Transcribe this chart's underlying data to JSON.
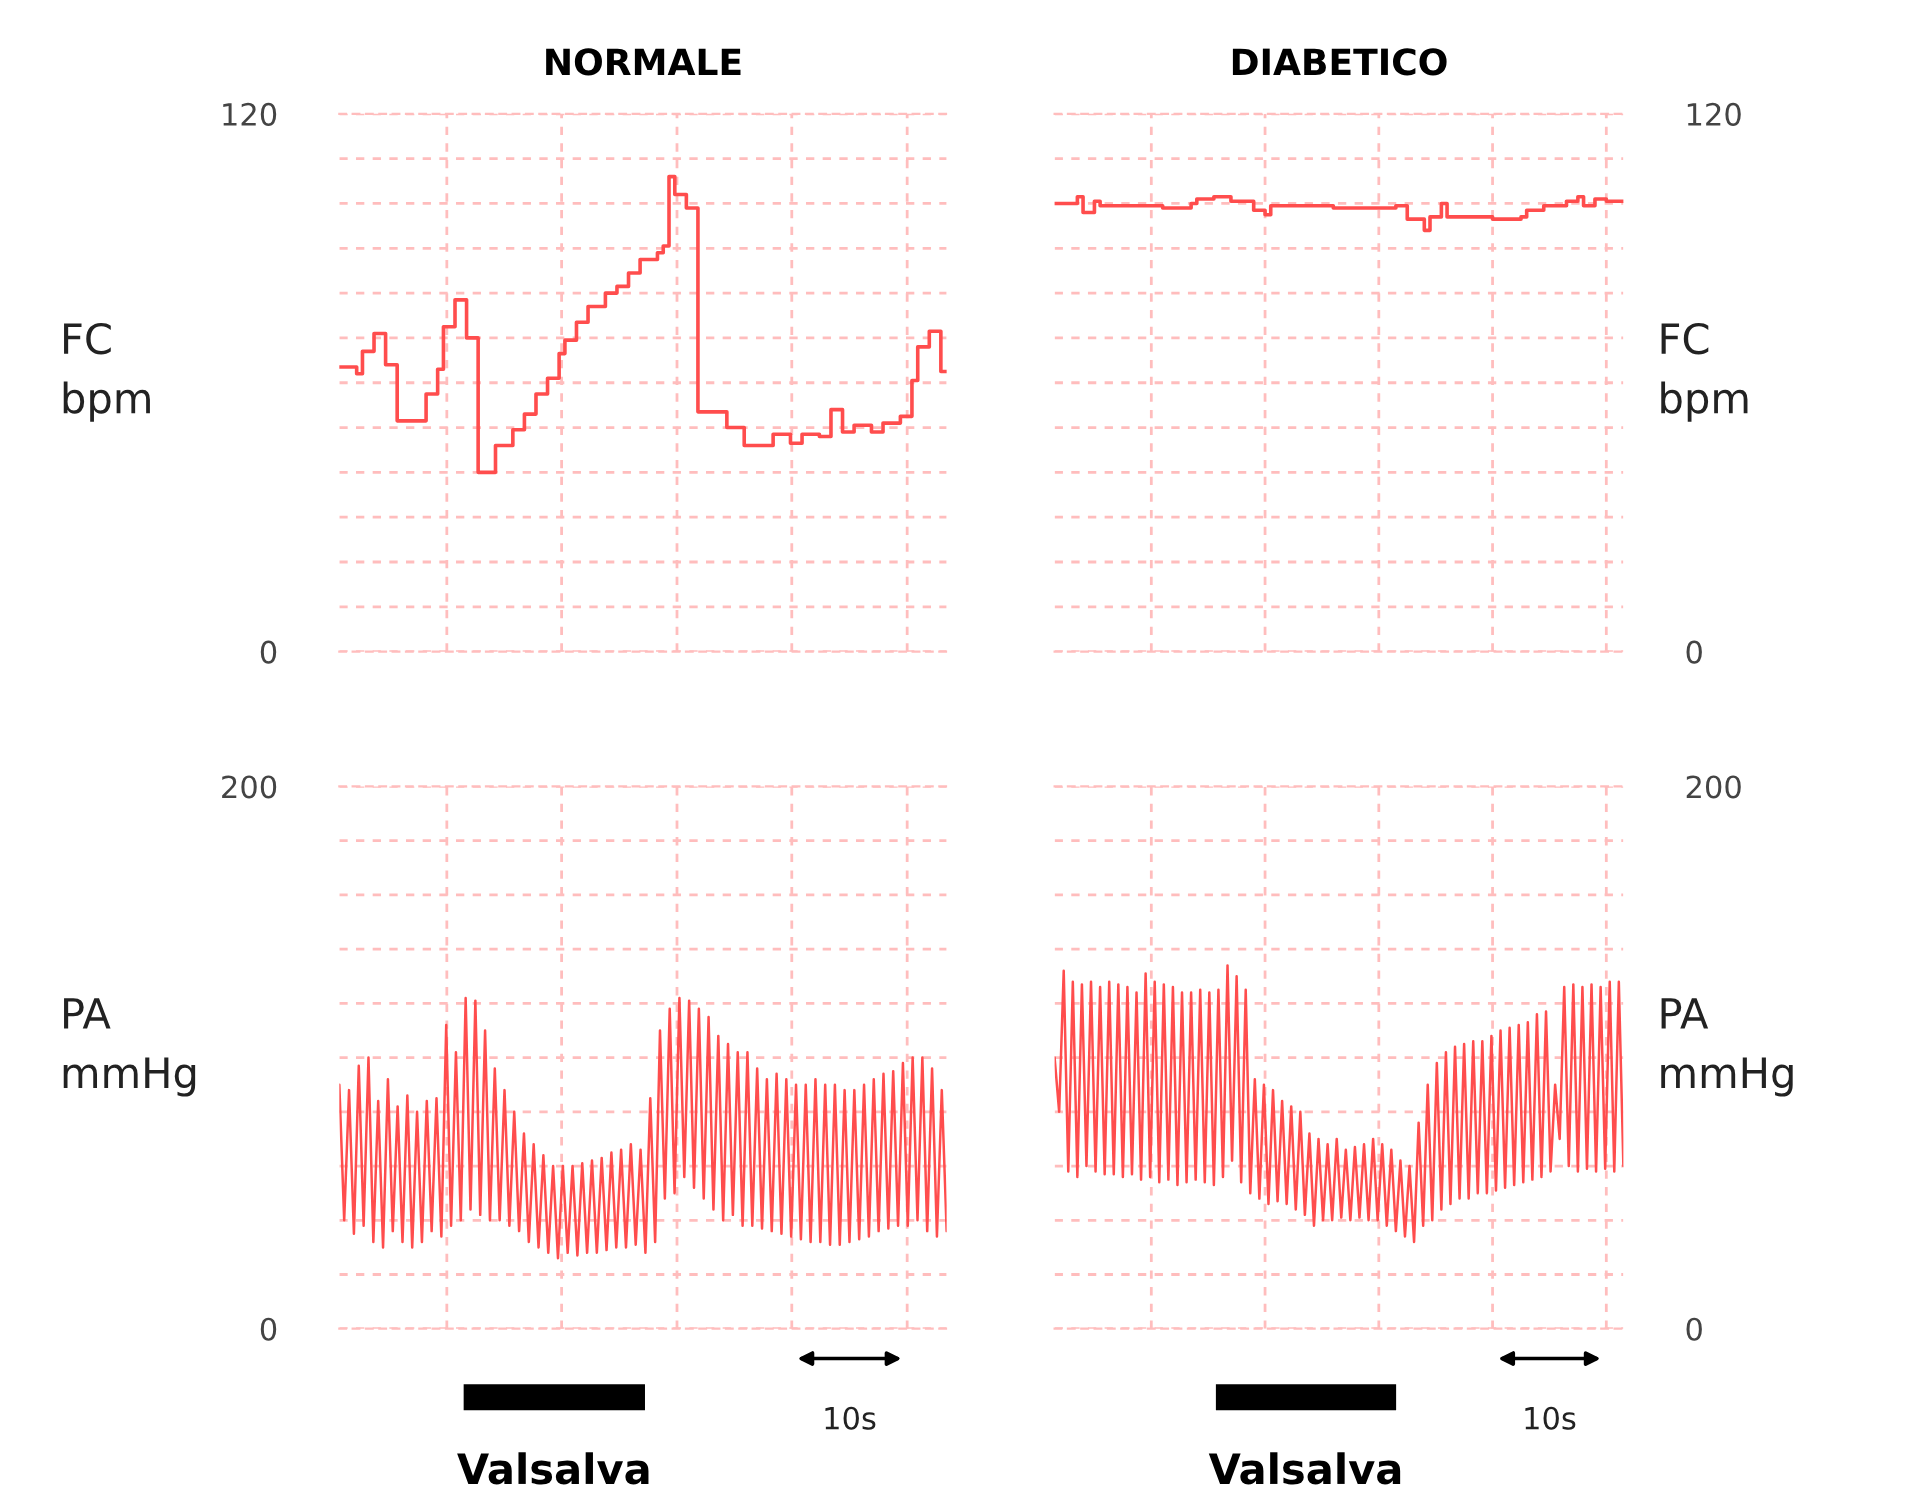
{
  "chart_data": [
    {
      "type": "step",
      "title": "NORMALE",
      "ylabel": "FC\nbpm",
      "ylim": [
        0,
        120
      ],
      "yticks": [
        0,
        {
          "value": 10,
          "label": null
        },
        {
          "value": 20,
          "label": null
        },
        {
          "value": 30,
          "label": null
        },
        {
          "value": 40,
          "label": null
        },
        {
          "value": 50,
          "label": null
        },
        {
          "value": 60,
          "label": null
        },
        {
          "value": 70,
          "label": null
        },
        {
          "value": 80,
          "label": null
        },
        {
          "value": 90,
          "label": null
        },
        {
          "value": 100,
          "label": null
        },
        {
          "value": 110,
          "label": null
        },
        120
      ],
      "grid": true,
      "tick_labels": "y",
      "line_style": "solid",
      "categories": [
        null,
        null,
        null,
        null,
        null,
        null,
        null,
        null,
        null,
        null,
        null,
        null,
        null,
        null,
        null,
        null,
        null,
        null,
        null,
        null,
        null,
        null,
        null,
        null,
        null,
        null,
        null,
        null,
        null,
        null,
        null,
        null,
        null,
        null,
        null,
        null,
        null,
        null,
        null,
        null,
        null,
        null,
        null,
        null,
        null,
        null,
        null,
        null,
        null,
        null,
        null,
        null,
        null,
        null,
        null,
        null,
        null,
        null,
        null,
        null,
        null,
        null,
        null,
        null,
        null,
        null,
        null,
        null,
        null,
        null,
        null,
        null,
        null,
        null,
        null,
        null,
        null,
        null,
        null,
        null,
        null,
        null,
        null,
        null,
        null,
        null,
        null,
        null,
        null,
        null,
        null,
        null,
        null,
        null,
        null,
        null,
        null,
        null,
        null,
        null,
        null,
        null,
        null,
        null,
        null,
        null
      ],
      "series": [
        {
          "color": "#ff4d4d",
          "values": [
            63.5,
            63.5,
            63.5,
            62,
            67,
            67,
            71,
            71,
            64,
            64,
            51.5,
            51.5,
            51.5,
            51.5,
            51.5,
            57.5,
            57.5,
            63,
            72.5,
            72.5,
            78.5,
            78.5,
            70,
            70,
            40,
            40,
            40,
            46,
            46,
            46,
            49.5,
            49.5,
            53,
            53,
            57.5,
            57.5,
            61,
            61,
            66.5,
            69.5,
            69.5,
            73.5,
            73.5,
            77,
            77,
            77,
            80,
            80,
            81.5,
            81.5,
            84.5,
            84.5,
            87.5,
            87.5,
            87.5,
            89,
            90.5,
            106,
            102,
            102,
            99,
            99,
            53.5,
            53.5,
            53.5,
            53.5,
            53.5,
            50,
            50,
            50,
            46,
            46,
            46,
            46,
            46,
            48.5,
            48.5,
            48.5,
            46.5,
            46.5,
            48.5,
            48.5,
            48.5,
            48,
            48,
            54,
            54,
            49,
            49,
            50.5,
            50.5,
            50.5,
            49,
            49,
            51,
            51,
            51,
            52.5,
            52.5,
            60.5,
            68,
            68,
            71.5,
            71.5,
            62.5,
            62.5
          ]
        }
      ]
    },
    {
      "type": "step",
      "title": "DIABETICO",
      "ylabel": "FC\nbpm",
      "ylim": [
        0,
        120
      ],
      "yticks": [
        0,
        {
          "value": 10,
          "label": null
        },
        {
          "value": 20,
          "label": null
        },
        {
          "value": 30,
          "label": null
        },
        {
          "value": 40,
          "label": null
        },
        {
          "value": 50,
          "label": null
        },
        {
          "value": 60,
          "label": null
        },
        {
          "value": 70,
          "label": null
        },
        {
          "value": 80,
          "label": null
        },
        {
          "value": 90,
          "label": null
        },
        {
          "value": 100,
          "label": null
        },
        {
          "value": 110,
          "label": null
        },
        120
      ],
      "grid": true,
      "tick_labels": "y",
      "line_style": "solid",
      "categories": [
        null,
        null,
        null,
        null,
        null,
        null,
        null,
        null,
        null,
        null,
        null,
        null,
        null,
        null,
        null,
        null,
        null,
        null,
        null,
        null,
        null,
        null,
        null,
        null,
        null,
        null,
        null,
        null,
        null,
        null,
        null,
        null,
        null,
        null,
        null,
        null,
        null,
        null,
        null,
        null,
        null,
        null,
        null,
        null,
        null,
        null,
        null,
        null,
        null,
        null,
        null,
        null,
        null,
        null,
        null,
        null,
        null,
        null,
        null,
        null,
        null,
        null,
        null,
        null,
        null,
        null,
        null,
        null,
        null,
        null,
        null,
        null,
        null,
        null,
        null,
        null,
        null,
        null,
        null,
        null,
        null,
        null,
        null,
        null,
        null,
        null,
        null,
        null,
        null,
        null,
        null,
        null,
        null,
        null,
        null,
        null,
        null,
        null,
        null,
        null,
        null
      ],
      "series": [
        {
          "color": "#ff4d4d",
          "values": [
            100,
            100,
            100,
            100,
            101.5,
            98,
            98,
            100.5,
            99.5,
            99.5,
            99.5,
            99.5,
            99.5,
            99.5,
            99.5,
            99.5,
            99.5,
            99.5,
            99.5,
            99,
            99,
            99,
            99,
            99,
            100,
            101,
            101,
            101,
            101.5,
            101.5,
            101.5,
            100.5,
            100.5,
            100.5,
            100.5,
            98.5,
            98.5,
            97.5,
            99.5,
            99.5,
            99.5,
            99.5,
            99.5,
            99.5,
            99.5,
            99.5,
            99.5,
            99.5,
            99.5,
            99,
            99,
            99,
            99,
            99,
            99,
            99,
            99,
            99,
            99,
            99,
            99.5,
            99.5,
            96.5,
            96.5,
            96.5,
            94,
            97,
            97,
            100,
            97,
            97,
            97,
            97,
            97,
            97,
            97,
            97,
            96.5,
            96.5,
            96.5,
            96.5,
            96.5,
            97,
            98.5,
            98.5,
            98.5,
            99.5,
            99.5,
            99.5,
            99.5,
            100.5,
            100.5,
            101.5,
            99.5,
            99.5,
            101,
            101,
            100.5,
            100.5,
            100.5,
            100.5
          ]
        }
      ]
    },
    {
      "type": "line",
      "ylabel": "PA\nmmHg",
      "ylim": [
        0,
        200
      ],
      "yticks": [
        0,
        {
          "value": 20,
          "label": null
        },
        {
          "value": 40,
          "label": null
        },
        {
          "value": 60,
          "label": null
        },
        {
          "value": 80,
          "label": null
        },
        {
          "value": 100,
          "label": null
        },
        {
          "value": 120,
          "label": null
        },
        {
          "value": 140,
          "label": null
        },
        {
          "value": 160,
          "label": null
        },
        {
          "value": 180,
          "label": null
        },
        200
      ],
      "grid": true,
      "tick_labels": "y",
      "line_style": "solid",
      "annotations": [
        "Valsalva",
        "10s"
      ],
      "categories": [
        null,
        null,
        null,
        null,
        null,
        null,
        null,
        null,
        null,
        null,
        null,
        null,
        null,
        null,
        null,
        null,
        null,
        null,
        null,
        null,
        null,
        null,
        null,
        null,
        null,
        null,
        null,
        null,
        null,
        null,
        null,
        null,
        null,
        null,
        null,
        null,
        null,
        null,
        null,
        null,
        null,
        null,
        null,
        null,
        null,
        null,
        null,
        null,
        null,
        null,
        null,
        null,
        null,
        null,
        null,
        null,
        null,
        null,
        null,
        null,
        null,
        null,
        null,
        null,
        null,
        null,
        null,
        null,
        null,
        null,
        null,
        null,
        null,
        null,
        null,
        null,
        null,
        null,
        null,
        null,
        null,
        null,
        null,
        null,
        null,
        null,
        null,
        null,
        null,
        null,
        null,
        null,
        null,
        null,
        null,
        null,
        null,
        null,
        null,
        null,
        null,
        null,
        null,
        null,
        null,
        null,
        null,
        null,
        null,
        null,
        null,
        null,
        null,
        null,
        null,
        null,
        null,
        null,
        null,
        null,
        null,
        null,
        null,
        null,
        null,
        null
      ],
      "series": [
        {
          "color": "#ff4d4d",
          "values": [
            90,
            40,
            88,
            35,
            97,
            38,
            100,
            32,
            84,
            30,
            92,
            36,
            82,
            32,
            86,
            30,
            80,
            32,
            84,
            36,
            85,
            34,
            112,
            38,
            102,
            40,
            122,
            44,
            121,
            42,
            110,
            40,
            96,
            40,
            88,
            38,
            80,
            36,
            72,
            32,
            68,
            30,
            64,
            28,
            60,
            26,
            60,
            28,
            60,
            27,
            61,
            28,
            62,
            28,
            63,
            29,
            65,
            30,
            66,
            30,
            68,
            31,
            66,
            28,
            85,
            32,
            110,
            48,
            118,
            50,
            122,
            56,
            121,
            52,
            118,
            48,
            115,
            44,
            108,
            40,
            105,
            42,
            102,
            38,
            102,
            38,
            96,
            37,
            92,
            36,
            94,
            35,
            92,
            34,
            90,
            33,
            90,
            32,
            92,
            32,
            90,
            31,
            90,
            31,
            88,
            32,
            88,
            33,
            90,
            34,
            92,
            36,
            94,
            37,
            95,
            38,
            98,
            38,
            100,
            40,
            100,
            36,
            96,
            34,
            88,
            36
          ]
        }
      ]
    },
    {
      "type": "line",
      "ylabel": "PA\nmmHg",
      "ylim": [
        0,
        200
      ],
      "yticks": [
        0,
        {
          "value": 20,
          "label": null
        },
        {
          "value": 40,
          "label": null
        },
        {
          "value": 60,
          "label": null
        },
        {
          "value": 80,
          "label": null
        },
        {
          "value": 100,
          "label": null
        },
        {
          "value": 120,
          "label": null
        },
        {
          "value": 140,
          "label": null
        },
        {
          "value": 160,
          "label": null
        },
        {
          "value": 180,
          "label": null
        },
        200
      ],
      "grid": true,
      "tick_labels": "y",
      "line_style": "solid",
      "annotations": [
        "Valsalva",
        "10s"
      ],
      "categories": [
        null,
        null,
        null,
        null,
        null,
        null,
        null,
        null,
        null,
        null,
        null,
        null,
        null,
        null,
        null,
        null,
        null,
        null,
        null,
        null,
        null,
        null,
        null,
        null,
        null,
        null,
        null,
        null,
        null,
        null,
        null,
        null,
        null,
        null,
        null,
        null,
        null,
        null,
        null,
        null,
        null,
        null,
        null,
        null,
        null,
        null,
        null,
        null,
        null,
        null,
        null,
        null,
        null,
        null,
        null,
        null,
        null,
        null,
        null,
        null,
        null,
        null,
        null,
        null,
        null,
        null,
        null,
        null,
        null,
        null,
        null,
        null,
        null,
        null,
        null,
        null,
        null,
        null,
        null,
        null,
        null,
        null,
        null,
        null,
        null,
        null,
        null,
        null,
        null,
        null,
        null,
        null,
        null,
        null,
        null,
        null,
        null,
        null,
        null,
        null,
        null,
        null,
        null,
        null,
        null,
        null,
        null,
        null,
        null,
        null,
        null,
        null,
        null,
        null,
        null,
        null,
        null,
        null,
        null,
        null,
        null,
        null,
        null,
        null,
        null,
        null
      ],
      "series": [
        {
          "color": "#ff4d4d",
          "values": [
            100,
            80,
            132,
            58,
            128,
            56,
            127,
            60,
            128,
            58,
            126,
            57,
            128,
            57,
            127,
            56,
            126,
            57,
            124,
            55,
            131,
            56,
            128,
            54,
            127,
            55,
            126,
            53,
            124,
            54,
            124,
            55,
            125,
            54,
            124,
            53,
            125,
            56,
            134,
            62,
            130,
            54,
            125,
            50,
            92,
            48,
            90,
            46,
            88,
            47,
            84,
            46,
            82,
            44,
            80,
            42,
            72,
            38,
            70,
            40,
            68,
            40,
            70,
            41,
            66,
            40,
            67,
            41,
            68,
            40,
            70,
            40,
            68,
            38,
            66,
            36,
            62,
            34,
            60,
            32,
            76,
            38,
            90,
            40,
            98,
            44,
            102,
            46,
            104,
            48,
            105,
            48,
            106,
            50,
            106,
            50,
            108,
            51,
            110,
            52,
            111,
            53,
            112,
            54,
            113,
            55,
            116,
            56,
            117,
            58,
            90,
            70,
            126,
            60,
            127,
            58,
            126,
            59,
            127,
            58,
            126,
            59,
            128,
            58,
            128,
            60
          ]
        }
      ]
    }
  ]
}
